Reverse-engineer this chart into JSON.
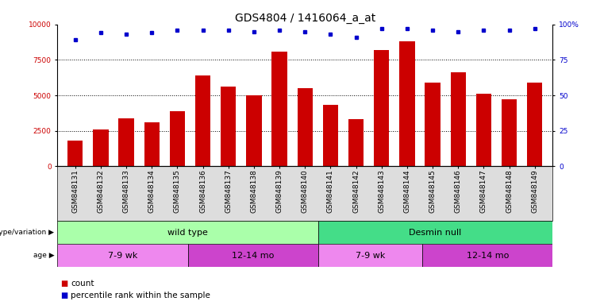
{
  "title": "GDS4804 / 1416064_a_at",
  "samples": [
    "GSM848131",
    "GSM848132",
    "GSM848133",
    "GSM848134",
    "GSM848135",
    "GSM848136",
    "GSM848137",
    "GSM848138",
    "GSM848139",
    "GSM848140",
    "GSM848141",
    "GSM848142",
    "GSM848143",
    "GSM848144",
    "GSM848145",
    "GSM848146",
    "GSM848147",
    "GSM848148",
    "GSM848149"
  ],
  "counts": [
    1800,
    2600,
    3400,
    3100,
    3900,
    6400,
    5600,
    5000,
    8100,
    5500,
    4300,
    3300,
    8200,
    8800,
    5900,
    6600,
    5100,
    4700,
    5900
  ],
  "percentile_ranks": [
    89,
    94,
    93,
    94,
    96,
    96,
    96,
    95,
    96,
    95,
    93,
    91,
    97,
    97,
    96,
    95,
    96,
    96,
    97
  ],
  "bar_color": "#cc0000",
  "marker_color": "#0000cc",
  "ylim_left": [
    0,
    10000
  ],
  "ylim_right": [
    0,
    100
  ],
  "yticks_left": [
    0,
    2500,
    5000,
    7500,
    10000
  ],
  "yticks_right": [
    0,
    25,
    50,
    75,
    100
  ],
  "ytick_labels_left": [
    "0",
    "2500",
    "5000",
    "7500",
    "10000"
  ],
  "ytick_labels_right": [
    "0",
    "25",
    "50",
    "75",
    "100%"
  ],
  "genotype_groups": [
    {
      "label": "wild type",
      "start": 0,
      "end": 10,
      "color": "#aaffaa"
    },
    {
      "label": "Desmin null",
      "start": 10,
      "end": 19,
      "color": "#44dd88"
    }
  ],
  "age_groups": [
    {
      "label": "7-9 wk",
      "start": 0,
      "end": 5,
      "color": "#ee88ee"
    },
    {
      "label": "12-14 mo",
      "start": 5,
      "end": 10,
      "color": "#cc44cc"
    },
    {
      "label": "7-9 wk",
      "start": 10,
      "end": 14,
      "color": "#ee88ee"
    },
    {
      "label": "12-14 mo",
      "start": 14,
      "end": 19,
      "color": "#cc44cc"
    }
  ],
  "legend_count_label": "count",
  "legend_pct_label": "percentile rank within the sample",
  "grid_lines": [
    2500,
    5000,
    7500
  ],
  "title_fontsize": 10,
  "tick_fontsize": 6.5,
  "annot_fontsize": 8,
  "legend_fontsize": 7.5
}
